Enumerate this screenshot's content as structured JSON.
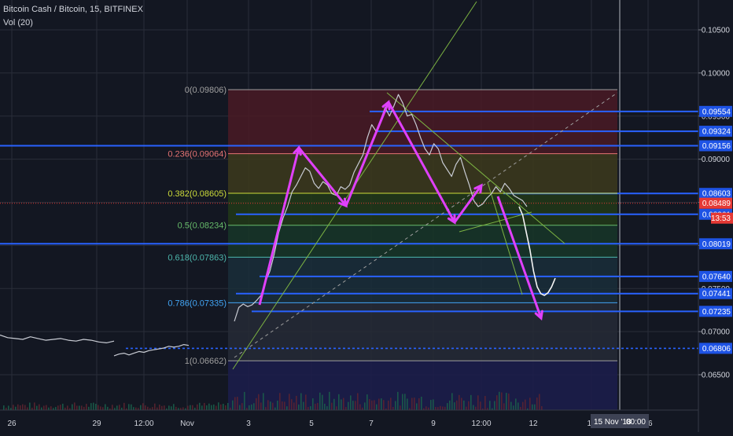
{
  "legend": {
    "symbol": "Bitcoin Cash / Bitcoin, 15, BITFINEX",
    "volume": "Vol (20)"
  },
  "crosshair": {
    "date_label": "15 Nov '18",
    "time_label": "00:00"
  },
  "last_price": {
    "value": "0.08489",
    "countdown": "13:53",
    "color": "#e53935"
  },
  "colors": {
    "background": "#131722",
    "grid": "#2a2e39",
    "axis_text": "#d1d4dc",
    "hline": "#2962ff",
    "drawing": "#e040fb",
    "trendline": "#7cb342",
    "diagonal": "#9e9e9e"
  },
  "chart_data": {
    "type": "line",
    "x_ticks": [
      "26",
      "29",
      "12:00",
      "Nov",
      "3",
      "5",
      "7",
      "9",
      "12:00",
      "12",
      "14",
      "16"
    ],
    "y_ticks": [
      0.065,
      0.07,
      0.075,
      0.08,
      0.085,
      0.09,
      0.095,
      0.1,
      0.105
    ],
    "y_tick_labels": [
      "0.06500",
      "0.07000",
      "0.07500",
      "0.08000",
      "0.08500",
      "0.09000",
      "0.09500",
      "0.10000",
      "0.10500"
    ],
    "ylim": [
      0.0625,
      0.1076
    ],
    "fibonacci": [
      {
        "ratio": "0",
        "price": "0.09806",
        "color": "#a0a0a0",
        "zone": "#4a1a24"
      },
      {
        "ratio": "0.236",
        "price": "0.09064",
        "color": "#e57373",
        "zone": "#3d3a1c"
      },
      {
        "ratio": "0.382",
        "price": "0.08605",
        "color": "#cddc39",
        "zone": "#223818"
      },
      {
        "ratio": "0.5",
        "price": "0.08234",
        "color": "#66bb6a",
        "zone": "#183628"
      },
      {
        "ratio": "0.618",
        "price": "0.07863",
        "color": "#4db6ac",
        "zone": "#1a2e3a"
      },
      {
        "ratio": "0.786",
        "price": "0.07335",
        "color": "#42a5f5",
        "zone": "#262a36"
      },
      {
        "ratio": "1",
        "price": "0.06662",
        "color": "#9e9e9e",
        "zone": null
      }
    ],
    "horizontal_levels": [
      "0.09554",
      "0.09324",
      "0.09156",
      "0.08603",
      "0.08361",
      "0.08019",
      "0.07640",
      "0.07441",
      "0.07235",
      "0.06806"
    ],
    "price_series": [
      [
        0.0696,
        0.0693,
        0.0692,
        0.0691,
        0.0694,
        0.0692,
        0.069,
        0.0691,
        0.0692,
        0.069,
        0.0689,
        0.0691,
        0.069,
        0.0688,
        0.0687,
        0.0689
      ],
      [
        0.0672,
        0.0674,
        0.0675,
        0.0673,
        0.0675,
        0.0677,
        0.0676,
        0.0678,
        0.0679,
        0.068,
        0.0681,
        0.0683,
        0.0682,
        0.0683,
        0.0685,
        0.0684
      ],
      [
        0.0712,
        0.0728,
        0.0732,
        0.0729,
        0.0731,
        0.0736,
        0.0742,
        0.0758,
        0.077,
        0.079,
        0.0815,
        0.0832,
        0.0845,
        0.0862,
        0.087,
        0.088,
        0.089,
        0.0886,
        0.0872,
        0.0866,
        0.0874,
        0.087,
        0.086,
        0.0858,
        0.0868,
        0.0865,
        0.087,
        0.0885,
        0.0895,
        0.0905,
        0.0925,
        0.094,
        0.0932,
        0.0945,
        0.096,
        0.095,
        0.0962,
        0.0975,
        0.0965,
        0.095,
        0.0952,
        0.094,
        0.0925,
        0.0912,
        0.0905,
        0.0918,
        0.0912,
        0.0896,
        0.0888,
        0.088,
        0.0894,
        0.0902,
        0.0885,
        0.087,
        0.0852,
        0.0845,
        0.0848,
        0.0855,
        0.086,
        0.0868,
        0.0862,
        0.0872,
        0.0866,
        0.0858,
        0.0855,
        0.0852,
        0.0845
      ]
    ],
    "projection_curve": [
      0.0845,
      0.0835,
      0.0815,
      0.0795,
      0.077,
      0.0752,
      0.0744,
      0.0742,
      0.0745,
      0.0752,
      0.0762
    ]
  }
}
